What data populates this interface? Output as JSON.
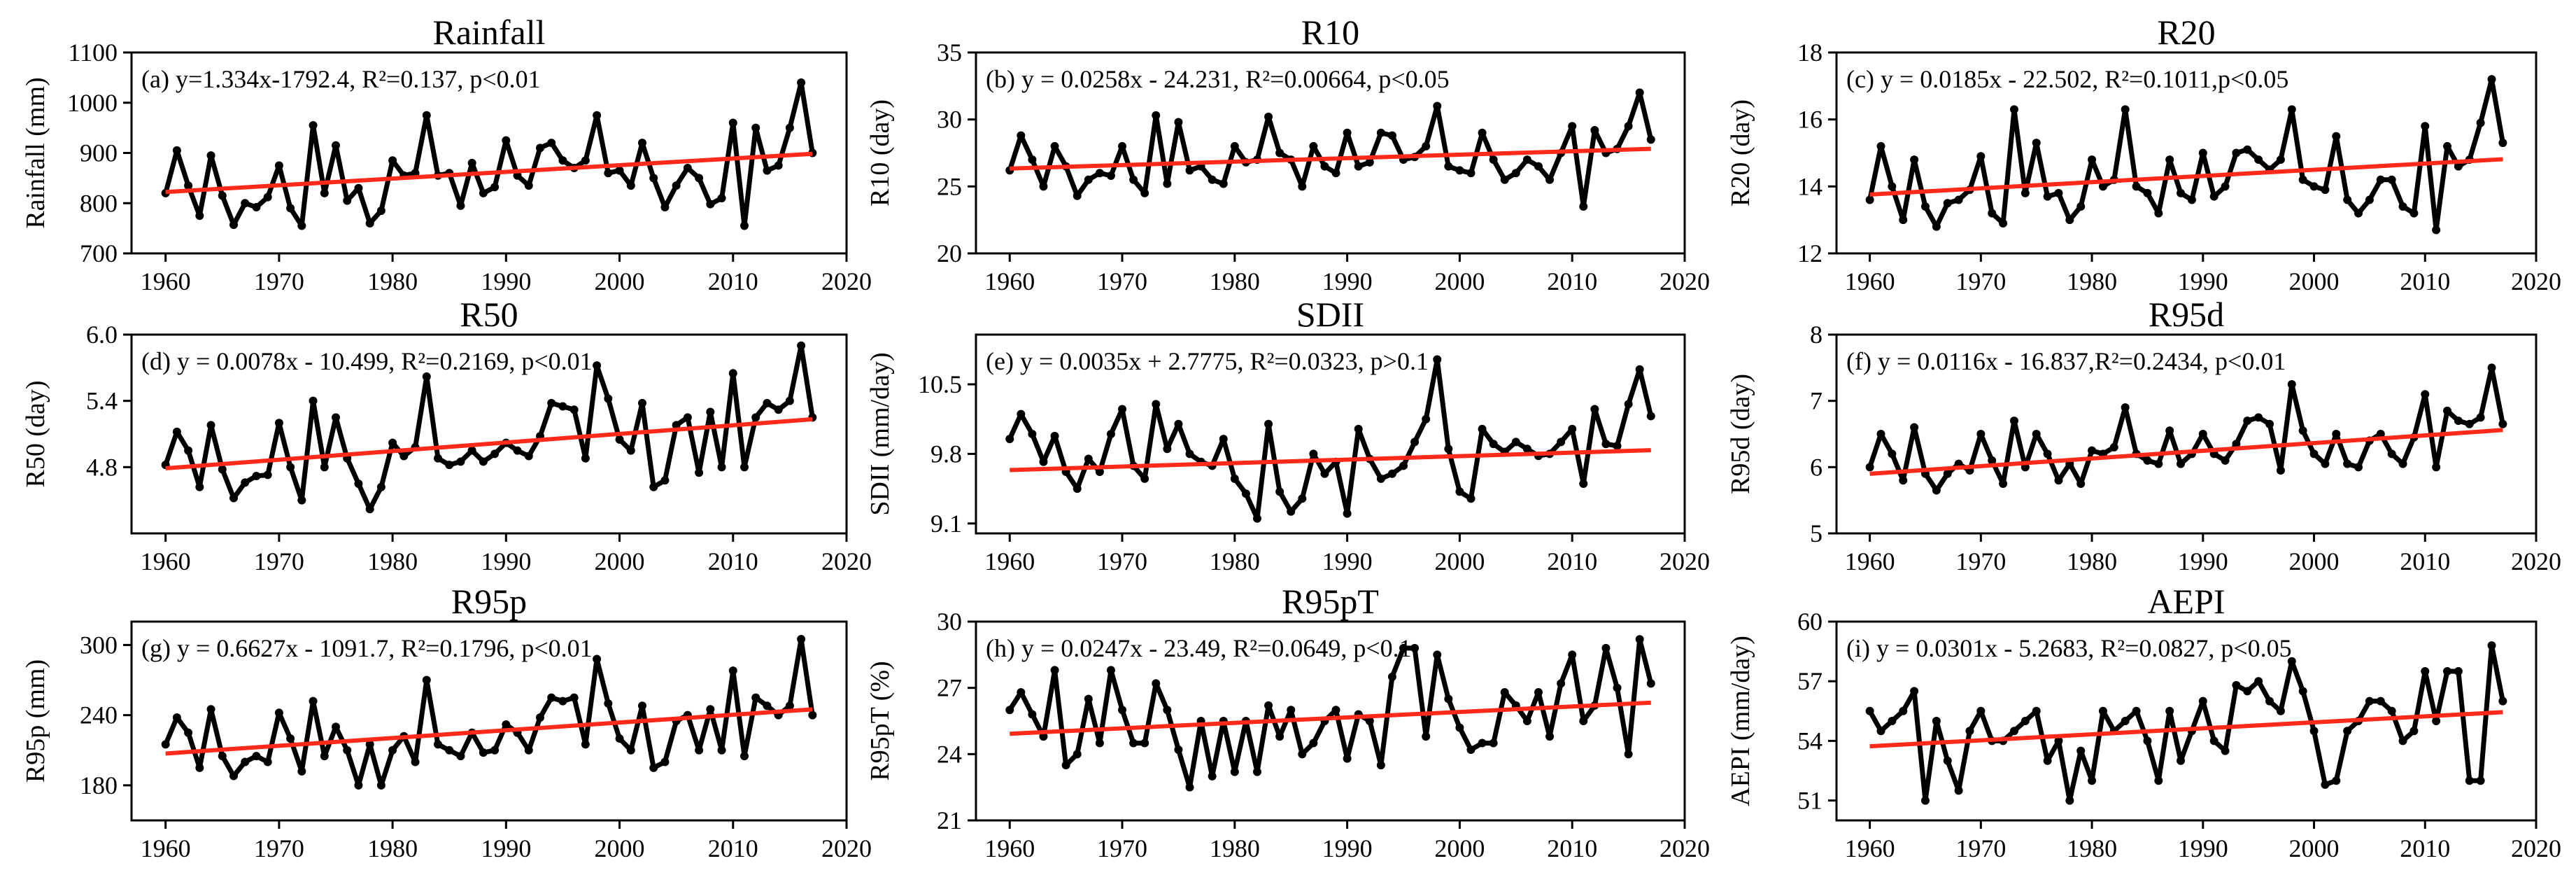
{
  "figure": {
    "line_color": "#000000",
    "trend_color": "#ff2a1a",
    "background": "#ffffff"
  },
  "chart_data": [
    {
      "id": "a",
      "type": "line",
      "title": "Rainfall",
      "ylabel": "Rainfall (mm)",
      "xlabel": "",
      "equation": "(a)  y=1.334x-1792.4, R²=0.137, p<0.01",
      "xlim": [
        1957,
        2020
      ],
      "ylim": [
        700,
        1100
      ],
      "xticks": [
        1960,
        1970,
        1980,
        1990,
        2000,
        2010,
        2020
      ],
      "yticks": [
        700,
        800,
        900,
        1000,
        1100
      ],
      "ytick_labels": [
        "700",
        "800",
        "900",
        "1000",
        "1100"
      ],
      "x_start": 1960,
      "values": [
        820,
        905,
        835,
        775,
        895,
        815,
        757,
        800,
        792,
        812,
        875,
        790,
        755,
        955,
        820,
        915,
        805,
        830,
        760,
        785,
        885,
        855,
        860,
        975,
        855,
        860,
        795,
        880,
        820,
        832,
        925,
        855,
        835,
        910,
        920,
        885,
        870,
        885,
        975,
        860,
        865,
        835,
        920,
        850,
        792,
        835,
        870,
        850,
        798,
        810,
        960,
        755,
        950,
        865,
        875,
        950,
        1040,
        900
      ],
      "trend": {
        "slope": 1.334,
        "intercept": -1792.4
      }
    },
    {
      "id": "b",
      "type": "line",
      "title": "R10",
      "ylabel": "R10 (day)",
      "xlabel": "",
      "equation": "(b)  y = 0.0258x - 24.231, R²=0.00664, p<0.05",
      "xlim": [
        1957,
        2020
      ],
      "ylim": [
        20,
        35
      ],
      "xticks": [
        1960,
        1970,
        1980,
        1990,
        2000,
        2010,
        2020
      ],
      "yticks": [
        20,
        25,
        30,
        35
      ],
      "ytick_labels": [
        "20",
        "25",
        "30",
        "35"
      ],
      "x_start": 1960,
      "values": [
        26.2,
        28.8,
        27.0,
        25.0,
        28.0,
        26.5,
        24.3,
        25.5,
        26.0,
        25.8,
        28.0,
        25.5,
        24.5,
        30.3,
        25.2,
        29.8,
        26.2,
        26.5,
        25.5,
        25.2,
        28.0,
        26.8,
        27.0,
        30.2,
        27.5,
        27.0,
        25.0,
        28.0,
        26.5,
        26.0,
        29.0,
        26.5,
        26.8,
        29.0,
        28.8,
        27.0,
        27.2,
        28.0,
        31.0,
        26.5,
        26.2,
        26.0,
        29.0,
        27.0,
        25.5,
        26.0,
        27.0,
        26.5,
        25.5,
        27.5,
        29.5,
        23.5,
        29.2,
        27.5,
        27.8,
        29.5,
        32.0,
        28.5
      ],
      "trend": {
        "slope": 0.0258,
        "intercept": -24.231
      }
    },
    {
      "id": "c",
      "type": "line",
      "title": "R20",
      "ylabel": "R20 (day)",
      "xlabel": "",
      "equation": "(c)  y = 0.0185x - 22.502, R²=0.1011,p<0.05",
      "xlim": [
        1957,
        2020
      ],
      "ylim": [
        12,
        18
      ],
      "xticks": [
        1960,
        1970,
        1980,
        1990,
        2000,
        2010,
        2020
      ],
      "yticks": [
        12,
        14,
        16,
        18
      ],
      "ytick_labels": [
        "12",
        "14",
        "16",
        "18"
      ],
      "x_start": 1960,
      "values": [
        13.6,
        15.2,
        14.0,
        13.0,
        14.8,
        13.4,
        12.8,
        13.5,
        13.6,
        13.9,
        14.9,
        13.2,
        12.9,
        16.3,
        13.8,
        15.3,
        13.7,
        13.8,
        13.0,
        13.4,
        14.8,
        14.0,
        14.2,
        16.3,
        14.0,
        13.8,
        13.2,
        14.8,
        13.8,
        13.6,
        15.0,
        13.7,
        14.0,
        15.0,
        15.1,
        14.8,
        14.5,
        14.8,
        16.3,
        14.2,
        14.0,
        13.9,
        15.5,
        13.6,
        13.2,
        13.6,
        14.2,
        14.2,
        13.4,
        13.2,
        15.8,
        12.7,
        15.2,
        14.6,
        14.8,
        15.9,
        17.2,
        15.3
      ],
      "trend": {
        "slope": 0.0185,
        "intercept": -22.502
      }
    },
    {
      "id": "d",
      "type": "line",
      "title": "R50",
      "ylabel": "R50 (day)",
      "xlabel": "",
      "equation": "(d)  y = 0.0078x - 10.499, R²=0.2169, p<0.01",
      "xlim": [
        1957,
        2020
      ],
      "ylim": [
        4.2,
        6.0
      ],
      "xticks": [
        1960,
        1970,
        1980,
        1990,
        2000,
        2010,
        2020
      ],
      "yticks": [
        4.8,
        5.4,
        6.0
      ],
      "ytick_labels": [
        "4.8",
        "5.4",
        "6.0"
      ],
      "x_start": 1960,
      "values": [
        4.82,
        5.12,
        4.95,
        4.62,
        5.18,
        4.78,
        4.52,
        4.66,
        4.72,
        4.73,
        5.2,
        4.8,
        4.5,
        5.4,
        4.8,
        5.25,
        4.88,
        4.65,
        4.42,
        4.62,
        5.02,
        4.9,
        4.98,
        5.62,
        4.88,
        4.82,
        4.85,
        4.95,
        4.85,
        4.92,
        5.02,
        4.95,
        4.9,
        5.08,
        5.38,
        5.35,
        5.32,
        4.88,
        5.72,
        5.42,
        5.05,
        4.95,
        5.38,
        4.62,
        4.68,
        5.18,
        5.25,
        4.75,
        5.3,
        4.8,
        5.65,
        4.8,
        5.25,
        5.38,
        5.32,
        5.4,
        5.9,
        5.25
      ],
      "trend": {
        "slope": 0.0078,
        "intercept": -10.499
      }
    },
    {
      "id": "e",
      "type": "line",
      "title": "SDII",
      "ylabel": "SDII (mm/day)",
      "xlabel": "",
      "equation": "(e)  y = 0.0035x + 2.7775, R²=0.0323, p>0.1",
      "xlim": [
        1957,
        2020
      ],
      "ylim": [
        9.0,
        11.0
      ],
      "xticks": [
        1960,
        1970,
        1980,
        1990,
        2000,
        2010,
        2020
      ],
      "yticks": [
        9.1,
        9.8,
        10.5
      ],
      "ytick_labels": [
        "9.1",
        "9.8",
        "10.5"
      ],
      "x_start": 1960,
      "values": [
        9.95,
        10.2,
        10.0,
        9.72,
        9.98,
        9.62,
        9.45,
        9.75,
        9.62,
        10.0,
        10.25,
        9.68,
        9.55,
        10.3,
        9.85,
        10.1,
        9.8,
        9.72,
        9.68,
        9.95,
        9.55,
        9.4,
        9.15,
        10.1,
        9.42,
        9.22,
        9.35,
        9.8,
        9.6,
        9.72,
        9.2,
        10.05,
        9.75,
        9.55,
        9.6,
        9.68,
        9.92,
        10.15,
        10.75,
        9.85,
        9.42,
        9.35,
        10.05,
        9.9,
        9.82,
        9.92,
        9.85,
        9.78,
        9.8,
        9.92,
        10.05,
        9.5,
        10.25,
        9.9,
        9.88,
        10.3,
        10.65,
        10.18
      ],
      "trend": {
        "slope": 0.0035,
        "intercept": 2.7775
      }
    },
    {
      "id": "f",
      "type": "line",
      "title": "R95d",
      "ylabel": "R95d (day)",
      "xlabel": "",
      "equation": "(f)  y = 0.0116x - 16.837,R²=0.2434, p<0.01",
      "xlim": [
        1957,
        2020
      ],
      "ylim": [
        5,
        8
      ],
      "xticks": [
        1960,
        1970,
        1980,
        1990,
        2000,
        2010,
        2020
      ],
      "yticks": [
        5,
        6,
        7,
        8
      ],
      "ytick_labels": [
        "5",
        "6",
        "7",
        "8"
      ],
      "x_start": 1960,
      "values": [
        6.0,
        6.5,
        6.2,
        5.8,
        6.6,
        5.9,
        5.65,
        5.9,
        6.05,
        5.95,
        6.5,
        6.1,
        5.75,
        6.7,
        6.0,
        6.5,
        6.2,
        5.8,
        6.05,
        5.75,
        6.25,
        6.2,
        6.3,
        6.9,
        6.2,
        6.1,
        6.05,
        6.55,
        6.05,
        6.2,
        6.5,
        6.2,
        6.1,
        6.35,
        6.7,
        6.75,
        6.65,
        5.95,
        7.25,
        6.55,
        6.2,
        6.05,
        6.5,
        6.05,
        6.0,
        6.4,
        6.5,
        6.2,
        6.05,
        6.45,
        7.1,
        6.0,
        6.85,
        6.7,
        6.65,
        6.75,
        7.5,
        6.65
      ],
      "trend": {
        "slope": 0.0116,
        "intercept": -16.837
      }
    },
    {
      "id": "g",
      "type": "line",
      "title": "R95p",
      "ylabel": "R95p (mm)",
      "xlabel": "",
      "equation": "(g)  y = 0.6627x - 1091.7, R²=0.1796, p<0.01",
      "xlim": [
        1957,
        2020
      ],
      "ylim": [
        150,
        320
      ],
      "xticks": [
        1960,
        1970,
        1980,
        1990,
        2000,
        2010,
        2020
      ],
      "yticks": [
        180,
        240,
        300
      ],
      "ytick_labels": [
        "180",
        "240",
        "300"
      ],
      "x_start": 1960,
      "values": [
        215,
        238,
        225,
        195,
        245,
        205,
        188,
        200,
        205,
        200,
        242,
        220,
        192,
        252,
        205,
        230,
        210,
        180,
        215,
        180,
        210,
        222,
        200,
        270,
        215,
        210,
        205,
        225,
        208,
        210,
        232,
        225,
        210,
        238,
        255,
        252,
        255,
        215,
        288,
        250,
        220,
        210,
        248,
        195,
        200,
        235,
        240,
        210,
        245,
        210,
        278,
        205,
        255,
        248,
        240,
        248,
        305,
        240
      ],
      "trend": {
        "slope": 0.6627,
        "intercept": -1091.7
      }
    },
    {
      "id": "h",
      "type": "line",
      "title": "R95pT",
      "ylabel": "R95pT (%)",
      "xlabel": "",
      "equation": "(h)  y = 0.0247x - 23.49, R²=0.0649, p<0.1",
      "xlim": [
        1957,
        2020
      ],
      "ylim": [
        21,
        30
      ],
      "xticks": [
        1960,
        1970,
        1980,
        1990,
        2000,
        2010,
        2020
      ],
      "yticks": [
        21,
        24,
        27,
        30
      ],
      "ytick_labels": [
        "21",
        "24",
        "27",
        "30"
      ],
      "x_start": 1960,
      "values": [
        26.0,
        26.8,
        25.8,
        24.8,
        27.8,
        23.5,
        24.0,
        26.5,
        24.5,
        27.8,
        26.0,
        24.5,
        24.5,
        27.2,
        26.0,
        24.2,
        22.5,
        25.5,
        23.0,
        25.5,
        23.2,
        25.5,
        23.2,
        26.2,
        24.8,
        26.0,
        24.0,
        24.5,
        25.5,
        26.0,
        23.8,
        25.8,
        25.5,
        23.5,
        27.5,
        28.8,
        28.8,
        24.8,
        28.5,
        26.5,
        25.2,
        24.2,
        24.5,
        24.5,
        26.8,
        26.2,
        25.5,
        26.8,
        24.8,
        27.2,
        28.5,
        25.5,
        26.2,
        28.8,
        27.0,
        24.0,
        29.2,
        27.2
      ],
      "trend": {
        "slope": 0.0247,
        "intercept": -23.49
      }
    },
    {
      "id": "i",
      "type": "line",
      "title": "AEPI",
      "ylabel": "AEPI (mm/day)",
      "xlabel": "",
      "equation": "(i)  y = 0.0301x - 5.2683, R²=0.0827, p<0.05",
      "xlim": [
        1957,
        2020
      ],
      "ylim": [
        50,
        60
      ],
      "xticks": [
        1960,
        1970,
        1980,
        1990,
        2000,
        2010,
        2020
      ],
      "yticks": [
        51,
        54,
        57,
        60
      ],
      "ytick_labels": [
        "51",
        "54",
        "57",
        "60"
      ],
      "x_start": 1960,
      "values": [
        55.5,
        54.5,
        55.0,
        55.5,
        56.5,
        51.0,
        55.0,
        53.0,
        51.5,
        54.5,
        55.5,
        54.0,
        54.0,
        54.5,
        55.0,
        55.5,
        53.0,
        54.0,
        51.0,
        53.5,
        52.0,
        55.5,
        54.5,
        55.0,
        55.5,
        54.0,
        52.0,
        55.5,
        53.0,
        54.5,
        56.0,
        54.0,
        53.5,
        56.8,
        56.5,
        57.0,
        56.0,
        55.5,
        58.0,
        56.5,
        54.5,
        51.8,
        52.0,
        54.5,
        55.0,
        56.0,
        56.0,
        55.5,
        54.0,
        54.5,
        57.5,
        55.0,
        57.5,
        57.5,
        52.0,
        52.0,
        58.8,
        56.0
      ],
      "trend": {
        "slope": 0.0301,
        "intercept": -5.2683
      }
    }
  ]
}
